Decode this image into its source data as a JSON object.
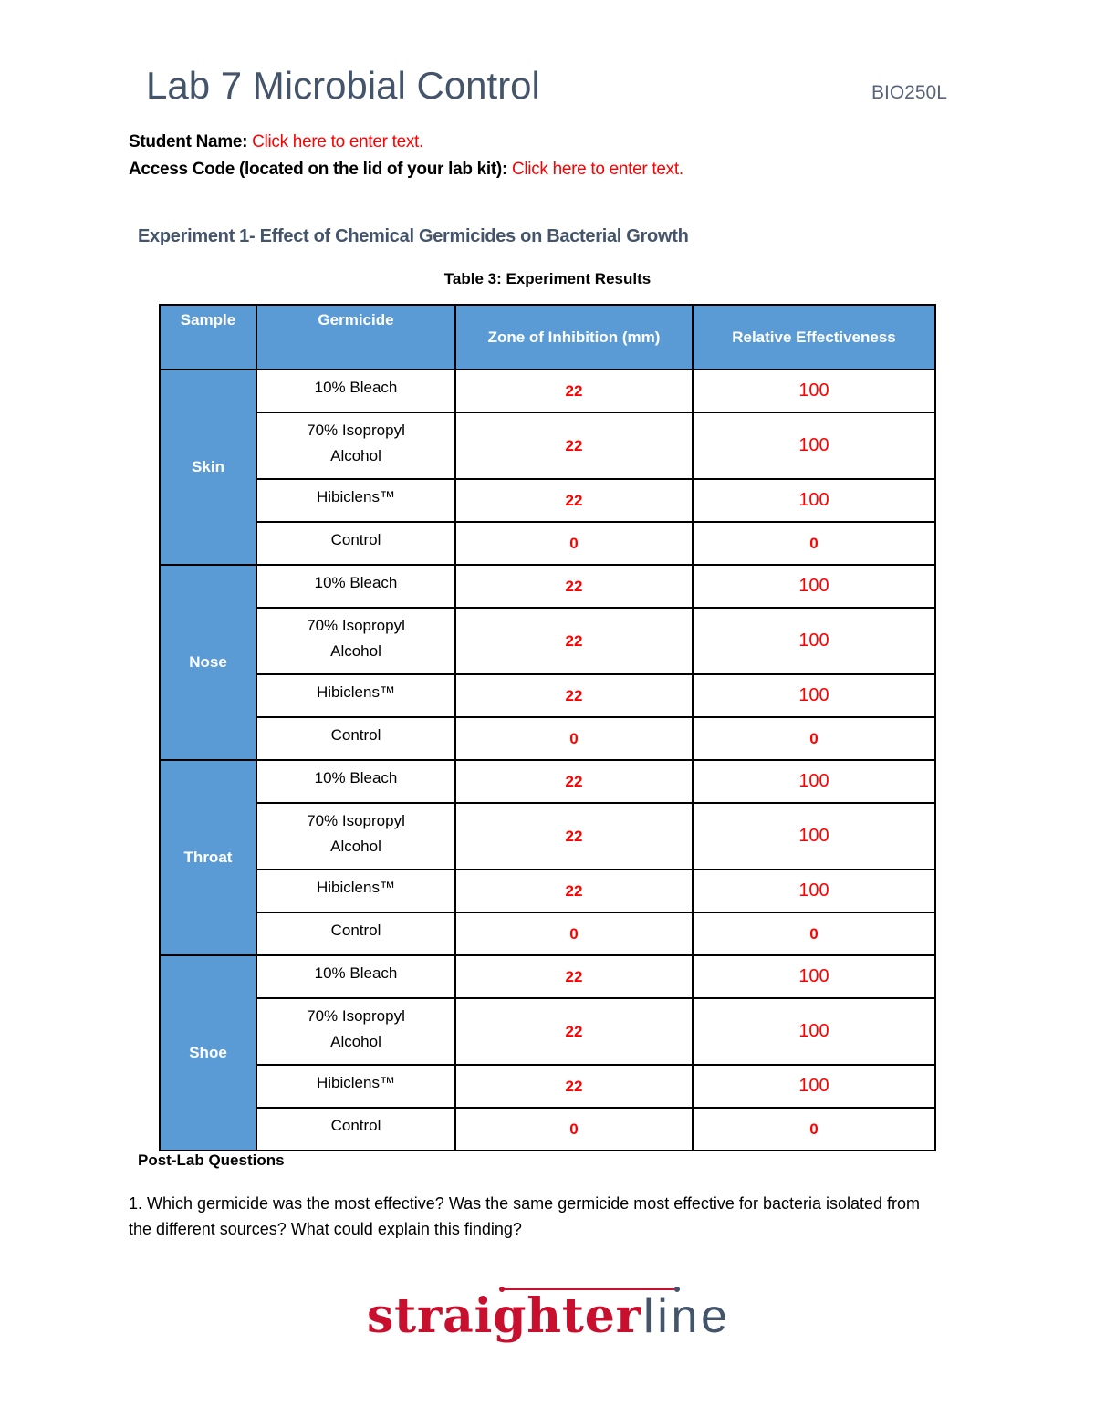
{
  "header": {
    "title": "Lab 7 Microbial Control",
    "course": "BIO250L"
  },
  "fields": {
    "student_label": "Student Name:",
    "student_placeholder": "Click here to enter text.",
    "access_label": "Access Code (located on the lid of your lab kit):",
    "access_placeholder": "Click here to enter text."
  },
  "experiment_title": "Experiment 1- Effect of Chemical Germicides on Bacterial Growth",
  "table": {
    "caption": "Table 3: Experiment Results",
    "headers": [
      "Sample",
      "Germicide",
      "Zone of Inhibition (mm)",
      "Relative Effectiveness"
    ],
    "groups": [
      {
        "sample": "Skin",
        "rows": [
          [
            "10% Bleach",
            "22",
            "100"
          ],
          [
            "70% Isopropyl Alcohol",
            "22",
            "100"
          ],
          [
            "Hibiclens™",
            "22",
            "100"
          ],
          [
            "Control",
            "0",
            "0"
          ]
        ]
      },
      {
        "sample": "Nose",
        "rows": [
          [
            "10% Bleach",
            "22",
            "100"
          ],
          [
            "70% Isopropyl Alcohol",
            "22",
            "100"
          ],
          [
            "Hibiclens™",
            "22",
            "100"
          ],
          [
            "Control",
            "0",
            "0"
          ]
        ]
      },
      {
        "sample": "Throat",
        "rows": [
          [
            "10% Bleach",
            "22",
            "100"
          ],
          [
            "70% Isopropyl Alcohol",
            "22",
            "100"
          ],
          [
            "Hibiclens™",
            "22",
            "100"
          ],
          [
            "Control",
            "0",
            "0"
          ]
        ]
      },
      {
        "sample": "Shoe",
        "rows": [
          [
            "10% Bleach",
            "22",
            "100"
          ],
          [
            "70% Isopropyl Alcohol",
            "22",
            "100"
          ],
          [
            "Hibiclens™",
            "22",
            "100"
          ],
          [
            "Control",
            "0",
            "0"
          ]
        ]
      }
    ]
  },
  "post_lab": {
    "heading": "Post-Lab Questions",
    "q1": "1. Which germicide was the most effective?  Was the same germicide most effective for bacteria isolated from the different sources?  What could explain this finding?"
  },
  "logo": {
    "text_a": "straighter",
    "text_b": "line",
    "color_a": "#c8102e",
    "color_b": "#44546a"
  },
  "colors": {
    "header_fill": "#5b9bd5",
    "placeholder": "#ff0000",
    "heading": "#44546a"
  }
}
